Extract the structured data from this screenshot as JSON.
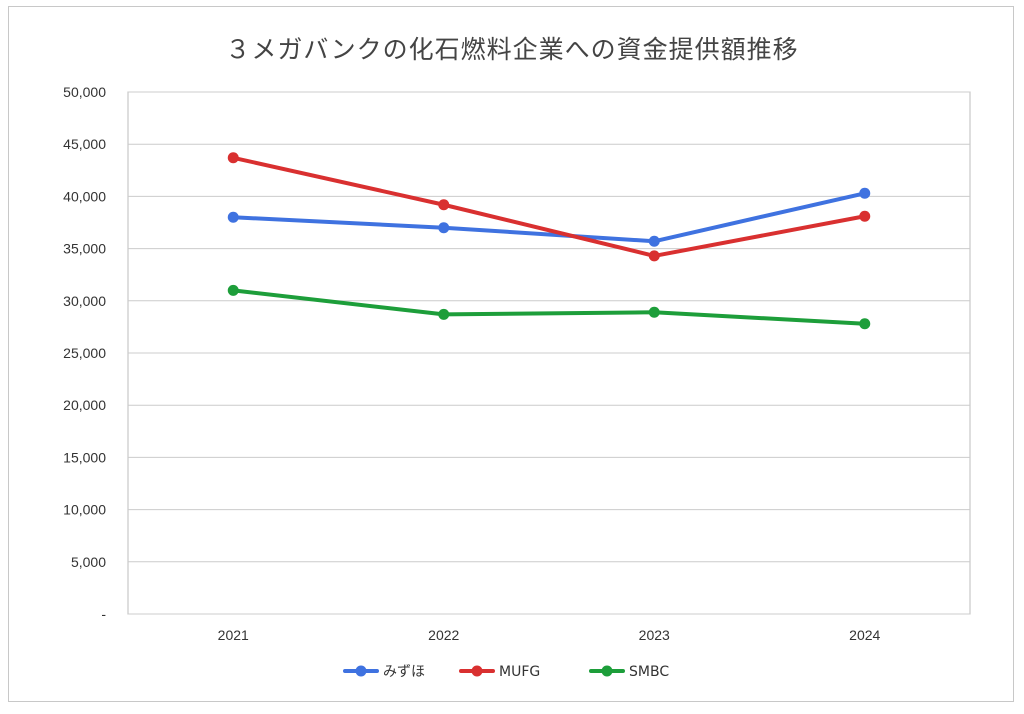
{
  "chart_data": {
    "type": "line",
    "title": "３メガバンクの化石燃料企業への資金提供額推移",
    "xlabel": "",
    "ylabel": "",
    "categories": [
      "2021",
      "2022",
      "2023",
      "2024"
    ],
    "ylim": [
      0,
      50000
    ],
    "yticks": [
      0,
      5000,
      10000,
      15000,
      20000,
      25000,
      30000,
      35000,
      40000,
      45000,
      50000
    ],
    "ytick_labels": [
      "-",
      "5,000",
      "10,000",
      "15,000",
      "20,000",
      "25,000",
      "30,000",
      "35,000",
      "40,000",
      "45,000",
      "50,000"
    ],
    "grid": true,
    "legend_position": "bottom",
    "series": [
      {
        "name": "みずほ",
        "color": "#3f72e0",
        "values": [
          38000,
          37000,
          35700,
          40300
        ]
      },
      {
        "name": "MUFG",
        "color": "#d93030",
        "values": [
          43700,
          39200,
          34300,
          38100
        ]
      },
      {
        "name": "SMBC",
        "color": "#1d9e3a",
        "values": [
          31000,
          28700,
          28900,
          27800
        ]
      }
    ]
  }
}
